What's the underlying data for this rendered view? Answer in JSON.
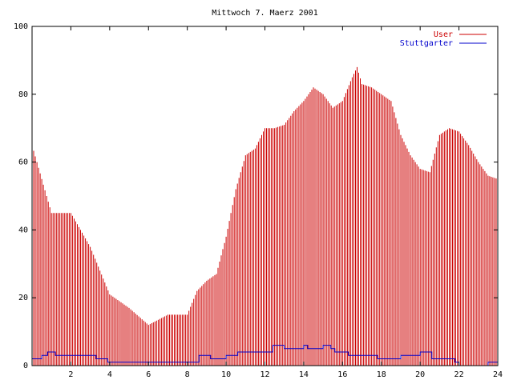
{
  "chart_data": {
    "type": "bar",
    "title": "Mittwoch 7. Maerz 2001",
    "xlabel": "",
    "ylabel": "",
    "xlim": [
      0,
      24
    ],
    "ylim": [
      0,
      100
    ],
    "x_ticks": [
      2,
      4,
      6,
      8,
      10,
      12,
      14,
      16,
      18,
      20,
      22,
      24
    ],
    "x_tick_labels": [
      "2",
      "4",
      "6",
      "8",
      "10",
      "12",
      "14",
      "16",
      "18",
      "20",
      "22",
      "24"
    ],
    "y_ticks": [
      0,
      20,
      40,
      60,
      80,
      100
    ],
    "y_tick_labels": [
      "0",
      "20",
      "40",
      "60",
      "80",
      "100"
    ],
    "grid": false,
    "legend_position": "top-right",
    "series": [
      {
        "name": "User",
        "style": "impulses",
        "color": "#cc0000",
        "x": [
          0.0,
          1.0,
          2.0,
          3.0,
          4.0,
          5.0,
          6.0,
          7.0,
          8.0,
          8.5,
          9.0,
          9.5,
          10.0,
          10.5,
          11.0,
          11.5,
          12.0,
          12.5,
          13.0,
          13.5,
          14.0,
          14.5,
          15.0,
          15.5,
          16.0,
          16.5,
          16.75,
          17.0,
          17.5,
          18.0,
          18.5,
          19.0,
          19.5,
          20.0,
          20.5,
          21.0,
          21.5,
          22.0,
          22.5,
          23.0,
          23.5,
          24.0
        ],
        "y": [
          65,
          45,
          45,
          35,
          21,
          17,
          12,
          15,
          15,
          22,
          25,
          27,
          38,
          52,
          62,
          64,
          70,
          70,
          71,
          75,
          78,
          82,
          80,
          76,
          78,
          85,
          88,
          83,
          82,
          80,
          78,
          68,
          62,
          58,
          57,
          68,
          70,
          69,
          65,
          60,
          56,
          55
        ]
      },
      {
        "name": "Stuttgarter",
        "style": "lines",
        "color": "#0000cc",
        "x": [
          0.0,
          0.5,
          0.8,
          1.2,
          3.3,
          3.9,
          8.4,
          8.6,
          9.2,
          10.0,
          10.6,
          11.2,
          12.4,
          13.0,
          14.0,
          14.2,
          15.0,
          15.4,
          15.6,
          16.0,
          16.3,
          16.6,
          17.0,
          17.8,
          18.5,
          19.0,
          19.5,
          20.0,
          20.6,
          21.0,
          21.5,
          21.8,
          22.0,
          23.0,
          23.5,
          24.0
        ],
        "y": [
          2,
          3,
          4,
          3,
          2,
          1,
          1,
          3,
          2,
          3,
          4,
          4,
          6,
          5,
          6,
          5,
          6,
          5,
          4,
          4,
          3,
          3,
          3,
          2,
          2,
          3,
          3,
          4,
          2,
          2,
          2,
          1,
          0,
          0,
          1,
          1
        ]
      }
    ]
  }
}
